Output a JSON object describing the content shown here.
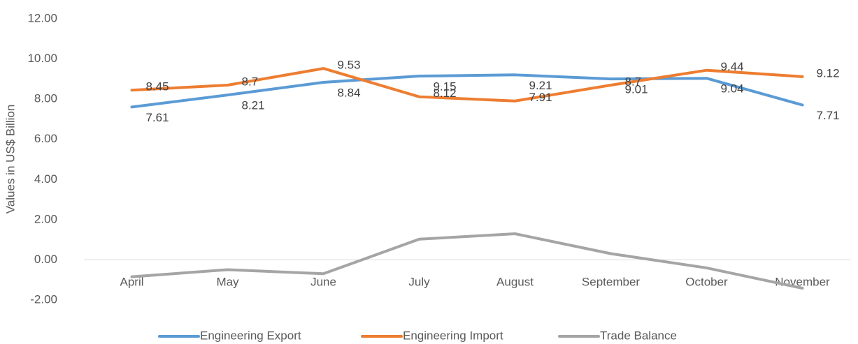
{
  "chart_data": {
    "type": "line",
    "y_label": "Values in US$ Billion",
    "categories": [
      "April",
      "May",
      "June",
      "July",
      "August",
      "September",
      "October",
      "November"
    ],
    "series": [
      {
        "name": "Engineering Export",
        "color": "#5b9bd5",
        "values": [
          7.61,
          8.21,
          8.84,
          9.15,
          9.21,
          9.01,
          9.04,
          7.71
        ],
        "data_labels": true
      },
      {
        "name": "Engineering Import",
        "color": "#ed7d31",
        "values": [
          8.45,
          8.7,
          9.53,
          8.12,
          7.91,
          8.7,
          9.44,
          9.12
        ],
        "data_labels": true
      },
      {
        "name": "Trade Balance",
        "color": "#a5a5a5",
        "values": [
          -0.84,
          -0.49,
          -0.69,
          1.03,
          1.3,
          0.31,
          -0.4,
          -1.41
        ],
        "data_labels": false
      }
    ],
    "ylim": [
      -2,
      12
    ],
    "yticks": [
      {
        "value": -2,
        "label": "-2.00"
      },
      {
        "value": 0,
        "label": "0.00"
      },
      {
        "value": 2,
        "label": "2.00"
      },
      {
        "value": 4,
        "label": "4.00"
      },
      {
        "value": 6,
        "label": "6.00"
      },
      {
        "value": 8,
        "label": "8.00"
      },
      {
        "value": 10,
        "label": "10.00"
      },
      {
        "value": 12,
        "label": "12.00"
      }
    ],
    "grid": false,
    "legend": "bottom"
  }
}
